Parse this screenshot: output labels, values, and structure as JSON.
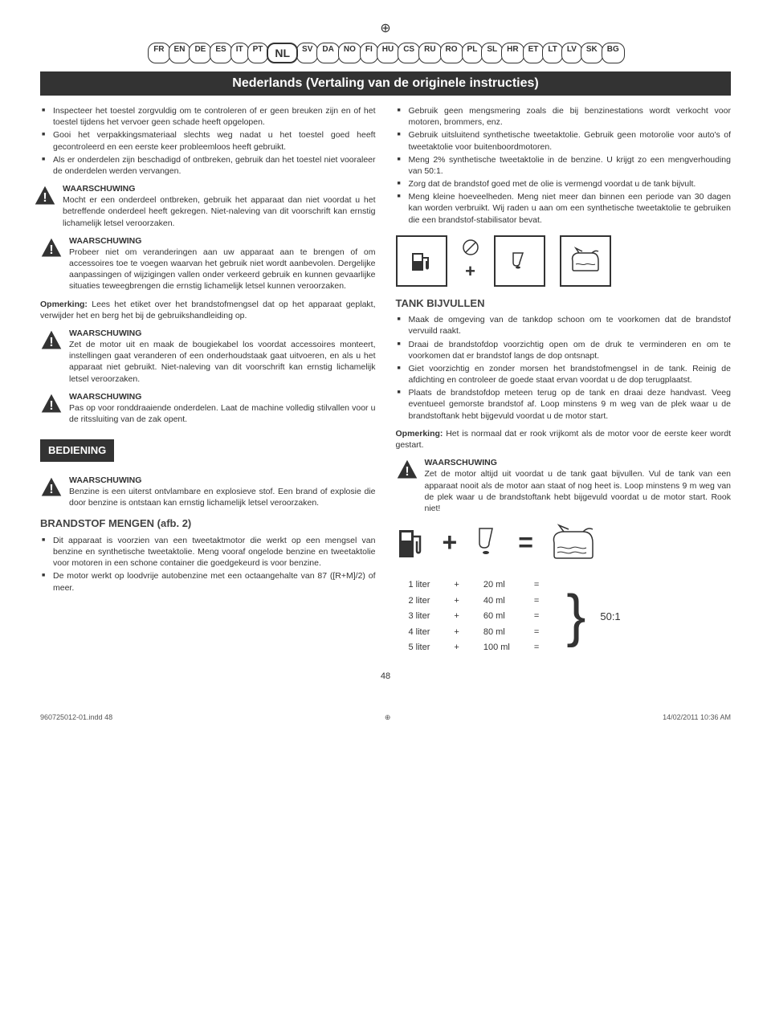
{
  "languages": [
    "FR",
    "EN",
    "DE",
    "ES",
    "IT",
    "PT",
    "NL",
    "SV",
    "DA",
    "NO",
    "FI",
    "HU",
    "CS",
    "RU",
    "RO",
    "PL",
    "SL",
    "HR",
    "ET",
    "LT",
    "LV",
    "SK",
    "BG"
  ],
  "active_language_index": 6,
  "title": "Nederlands (Vertaling van de originele instructies)",
  "left": {
    "bullets1": [
      "Inspecteer het toestel zorgvuldig om te controleren of er geen breuken zijn en of het toestel tijdens het vervoer geen schade heeft opgelopen.",
      "Gooi het verpakkingsmateriaal slechts weg nadat u het toestel goed heeft gecontroleerd en een eerste keer probleemloos heeft gebruikt.",
      "Als er onderdelen zijn beschadigd of ontbreken, gebruik dan het toestel niet vooraleer de onderdelen werden vervangen."
    ],
    "warn1": {
      "heading": "WAARSCHUWING",
      "body": "Mocht er een onderdeel ontbreken, gebruik het apparaat dan niet voordat u het betreffende onderdeel heeft gekregen. Niet-naleving van dit voorschrift kan ernstig lichamelijk letsel veroorzaken."
    },
    "warn2": {
      "heading": "WAARSCHUWING",
      "body": "Probeer niet om veranderingen aan uw apparaat aan te brengen of om accessoires toe te voegen waarvan het gebruik niet wordt aanbevolen. Dergelijke aanpassingen of wijzigingen vallen onder verkeerd gebruik en kunnen gevaarlijke situaties teweegbrengen die ernstig lichamelijk letsel kunnen veroorzaken."
    },
    "note1": "Opmerking: Lees het etiket over het brandstofmengsel dat op het apparaat geplakt, verwijder het en berg het bij de gebruikshandleiding op.",
    "note1_bold": "Opmerking:",
    "warn3": {
      "heading": "WAARSCHUWING",
      "body": "Zet de motor uit en maak de bougiekabel los voordat accessoires monteert, instellingen gaat veranderen of een onderhoudstaak gaat uitvoeren, en als u het apparaat niet gebruikt. Niet-naleving van dit voorschrift kan ernstig lichamelijk letsel veroorzaken."
    },
    "warn4": {
      "heading": "WAARSCHUWING",
      "body": "Pas op voor ronddraaiende onderdelen. Laat de machine volledig stilvallen voor u de ritssluiting van de zak opent."
    },
    "section_bediening": "BEDIENING",
    "warn5": {
      "heading": "WAARSCHUWING",
      "body": "Benzine is een uiterst ontvlambare en explosieve stof. Een brand of explosie die door benzine is ontstaan kan ernstig lichamelijk letsel veroorzaken."
    },
    "section_brandstof": "BRANDSTOF MENGEN (afb. 2)",
    "bullets2": [
      "Dit apparaat is voorzien van een tweetaktmotor die werkt op een mengsel van benzine en synthetische tweetaktolie. Meng vooraf ongelode benzine en tweetaktolie voor motoren in een schone container die goedgekeurd is voor benzine.",
      "De motor werkt op loodvrije autobenzine met een octaangehalte van 87 ([R+M]/2) of meer."
    ]
  },
  "right": {
    "bullets1": [
      "Gebruik geen mengsmering zoals die bij benzinestations wordt verkocht voor motoren, brommers, enz.",
      "Gebruik uitsluitend synthetische tweetaktolie. Gebruik geen motorolie voor auto's of tweetaktolie voor buitenboordmotoren.",
      "Meng 2% synthetische tweetaktolie in de benzine. U krijgt zo een mengverhouding van 50:1.",
      "Zorg dat de brandstof goed met de olie is vermengd voordat u de tank bijvult.",
      "Meng kleine hoeveelheden. Meng niet meer dan binnen een periode van 30 dagen kan worden verbruikt. Wij raden u aan om een synthetische tweetaktolie te gebruiken die een brandstof-stabilisator bevat."
    ],
    "section_tank": "TANK BIJVULLEN",
    "bullets2": [
      "Maak de omgeving van de tankdop schoon om te voorkomen dat de brandstof vervuild raakt.",
      "Draai de brandstofdop voorzichtig open om de druk te verminderen en om te voorkomen dat er brandstof langs de dop ontsnapt.",
      "Giet voorzichtig en zonder morsen het brandstofmengsel in de tank. Reinig de afdichting en controleer de goede staat ervan voordat u de dop terugplaatst.",
      "Plaats de brandstofdop meteen terug op de tank en draai deze handvast. Veeg eventueel gemorste brandstof af. Loop minstens 9 m weg van de plek waar u de brandstoftank hebt bijgevuld voordat u de motor start."
    ],
    "note2_bold": "Opmerking:",
    "note2": " Het is normaal dat er rook vrijkomt als de motor voor de eerste keer wordt gestart.",
    "warn6": {
      "heading": "WAARSCHUWING",
      "body": "Zet de motor altijd uit voordat u de tank gaat bijvullen. Vul de tank van een apparaat nooit als de motor aan staat of nog heet is. Loop minstens 9 m weg van de plek waar u de brandstoftank hebt bijgevuld voordat u de motor start. Rook niet!"
    },
    "mix": {
      "rows": [
        [
          "1 liter",
          "+",
          "20 ml",
          "="
        ],
        [
          "2 liter",
          "+",
          "40 ml",
          "="
        ],
        [
          "3 liter",
          "+",
          "60 ml",
          "="
        ],
        [
          "4 liter",
          "+",
          "80 ml",
          "="
        ],
        [
          "5 liter",
          "+",
          "100 ml",
          "="
        ]
      ],
      "ratio": "50:1"
    }
  },
  "page_number": "48",
  "footer": {
    "left": "960725012-01.indd   48",
    "right": "14/02/2011   10:36 AM"
  }
}
